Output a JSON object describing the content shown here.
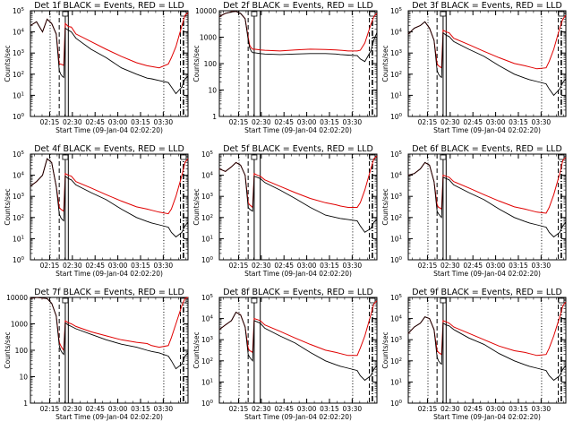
{
  "figure": {
    "xlabel": "Start Time (09-Jan-04 02:02:20)",
    "ylabel": "Counts/sec",
    "x_ticks": [
      "02:15",
      "02:30",
      "02:45",
      "03:00",
      "03:15",
      "03:30"
    ],
    "colors": {
      "events": "#000000",
      "lld": "#e00000"
    }
  },
  "chart_data": [
    {
      "type": "line",
      "title": "Det 1f BLACK = Events, RED = LLD",
      "scale": "log",
      "ylim": [
        1,
        100000
      ],
      "y_ticks": [
        "10^0",
        "10^1",
        "10^2",
        "10^3",
        "10^4",
        "10^5"
      ],
      "x": [
        0,
        4,
        8,
        11,
        14,
        17,
        19,
        20,
        21,
        22,
        23,
        25,
        27,
        30,
        40,
        50,
        60,
        70,
        77,
        80,
        85,
        91,
        93,
        96,
        100,
        102,
        104
      ],
      "series": [
        {
          "name": "LLD",
          "values": [
            20000,
            30000,
            10000,
            40000,
            25000,
            8000,
            300,
            300,
            280,
            260,
            25000,
            18000,
            17000,
            8000,
            3500,
            1500,
            700,
            350,
            250,
            230,
            200,
            300,
            600,
            2000,
            20000,
            60000,
            80000
          ]
        },
        {
          "name": "Events",
          "values": [
            20000,
            30000,
            10000,
            40000,
            25000,
            8000,
            150,
            100,
            80,
            70,
            15000,
            12000,
            10000,
            5000,
            1500,
            600,
            200,
            100,
            65,
            60,
            50,
            40,
            25,
            12,
            25,
            60,
            80
          ]
        }
      ],
      "markers": {
        "dotted": [
          13,
          88
        ],
        "dashed": [
          19,
          99
        ],
        "solid": [
          23,
          25
        ],
        "dashdot": [
          101
        ]
      }
    },
    {
      "type": "line",
      "title": "Det 2f BLACK = Events, RED = LLD",
      "scale": "log",
      "ylim": [
        1,
        10000
      ],
      "y_ticks": [
        "1",
        "10",
        "100",
        "1000",
        "10000"
      ],
      "x": [
        0,
        4,
        8,
        11,
        14,
        17,
        19,
        20,
        21,
        22,
        23,
        25,
        27,
        30,
        40,
        50,
        60,
        70,
        77,
        80,
        85,
        91,
        93,
        96,
        100,
        102,
        104
      ],
      "series": [
        {
          "name": "LLD",
          "values": [
            6000,
            8000,
            9000,
            9500,
            8000,
            5000,
            1000,
            500,
            400,
            350,
            350,
            340,
            330,
            320,
            300,
            330,
            350,
            340,
            330,
            320,
            300,
            300,
            320,
            600,
            3000,
            6000,
            8000
          ]
        },
        {
          "name": "Events",
          "values": [
            6000,
            8000,
            9000,
            9500,
            8000,
            5000,
            800,
            400,
            300,
            260,
            260,
            250,
            240,
            230,
            220,
            230,
            240,
            240,
            230,
            220,
            210,
            200,
            150,
            120,
            300,
            800,
            1500
          ]
        }
      ],
      "markers": {
        "dotted": [
          13,
          88
        ],
        "dashed": [
          19,
          99
        ],
        "solid": [
          23,
          27
        ],
        "dashdot": [
          101
        ]
      }
    },
    {
      "type": "line",
      "title": "Det 3f BLACK = Events, RED = LLD",
      "scale": "log",
      "ylim": [
        1,
        100000
      ],
      "y_ticks": [
        "10^0",
        "10^1",
        "10^2",
        "10^3",
        "10^4",
        "10^5"
      ],
      "x": [
        0,
        4,
        8,
        11,
        14,
        17,
        19,
        20,
        21,
        22,
        23,
        25,
        27,
        30,
        40,
        50,
        60,
        70,
        77,
        80,
        85,
        91,
        93,
        96,
        100,
        102,
        104
      ],
      "series": [
        {
          "name": "LLD",
          "values": [
            8000,
            15000,
            20000,
            30000,
            15000,
            4000,
            300,
            250,
            220,
            200,
            12000,
            10000,
            9000,
            5000,
            2500,
            1200,
            600,
            320,
            250,
            220,
            180,
            200,
            400,
            1500,
            15000,
            40000,
            60000
          ]
        },
        {
          "name": "Events",
          "values": [
            8000,
            15000,
            20000,
            30000,
            15000,
            4000,
            150,
            100,
            80,
            70,
            9000,
            7000,
            6000,
            3500,
            1500,
            700,
            250,
            100,
            65,
            55,
            45,
            35,
            20,
            10,
            20,
            40,
            60
          ]
        }
      ],
      "markers": {
        "dotted": [
          13,
          88
        ],
        "dashed": [
          19,
          99
        ],
        "solid": [
          23,
          25
        ],
        "dashdot": [
          101
        ]
      }
    },
    {
      "type": "line",
      "title": "Det 4f BLACK = Events, RED = LLD",
      "scale": "log",
      "ylim": [
        1,
        100000
      ],
      "y_ticks": [
        "10^0",
        "10^1",
        "10^2",
        "10^3",
        "10^4",
        "10^5"
      ],
      "x": [
        0,
        4,
        8,
        11,
        14,
        17,
        19,
        20,
        21,
        22,
        23,
        25,
        27,
        30,
        40,
        50,
        60,
        70,
        77,
        80,
        85,
        91,
        93,
        96,
        100,
        102,
        104
      ],
      "series": [
        {
          "name": "LLD",
          "values": [
            3000,
            5000,
            10000,
            60000,
            40000,
            3000,
            300,
            250,
            220,
            200,
            12000,
            10000,
            9000,
            5000,
            2500,
            1200,
            600,
            320,
            250,
            220,
            180,
            150,
            250,
            1000,
            10000,
            40000,
            60000
          ]
        },
        {
          "name": "Events",
          "values": [
            3000,
            5000,
            10000,
            60000,
            40000,
            3000,
            150,
            100,
            80,
            70,
            9000,
            7000,
            6000,
            3500,
            1500,
            700,
            250,
            100,
            65,
            55,
            45,
            35,
            20,
            12,
            20,
            40,
            60
          ]
        }
      ],
      "markers": {
        "dotted": [
          13,
          88
        ],
        "dashed": [
          19,
          99
        ],
        "solid": [
          23,
          25
        ],
        "dashdot": [
          101
        ]
      }
    },
    {
      "type": "line",
      "title": "Det 5f BLACK = Events, RED = LLD",
      "scale": "log",
      "ylim": [
        1,
        100000
      ],
      "y_ticks": [
        "10^0",
        "10^1",
        "10^2",
        "10^3",
        "10^4",
        "10^5"
      ],
      "x": [
        0,
        4,
        8,
        11,
        14,
        17,
        19,
        20,
        21,
        22,
        23,
        25,
        27,
        30,
        40,
        50,
        60,
        70,
        77,
        80,
        85,
        91,
        93,
        96,
        100,
        102,
        104
      ],
      "series": [
        {
          "name": "LLD",
          "values": [
            20000,
            15000,
            25000,
            40000,
            30000,
            10000,
            500,
            400,
            350,
            300,
            12000,
            10000,
            9000,
            6000,
            3000,
            1500,
            800,
            500,
            400,
            350,
            300,
            300,
            500,
            2000,
            20000,
            60000,
            80000
          ]
        },
        {
          "name": "Events",
          "values": [
            20000,
            15000,
            25000,
            40000,
            30000,
            10000,
            300,
            250,
            220,
            200,
            9000,
            8000,
            7000,
            4500,
            2000,
            800,
            300,
            130,
            100,
            90,
            80,
            70,
            40,
            20,
            30,
            60,
            80
          ]
        }
      ],
      "markers": {
        "dotted": [
          13,
          88
        ],
        "dashed": [
          19,
          99
        ],
        "solid": [
          23,
          27
        ],
        "dashdot": [
          101
        ]
      }
    },
    {
      "type": "line",
      "title": "Det 6f BLACK = Events, RED = LLD",
      "scale": "log",
      "ylim": [
        1,
        100000
      ],
      "y_ticks": [
        "10^0",
        "10^1",
        "10^2",
        "10^3",
        "10^4",
        "10^5"
      ],
      "x": [
        0,
        4,
        8,
        11,
        14,
        17,
        19,
        20,
        21,
        22,
        23,
        25,
        27,
        30,
        40,
        50,
        60,
        70,
        77,
        80,
        85,
        91,
        93,
        96,
        100,
        102,
        104
      ],
      "series": [
        {
          "name": "LLD",
          "values": [
            10000,
            12000,
            20000,
            40000,
            30000,
            5000,
            400,
            300,
            280,
            250,
            10000,
            9000,
            8000,
            5000,
            2500,
            1200,
            600,
            320,
            250,
            220,
            180,
            160,
            300,
            1200,
            12000,
            50000,
            70000
          ]
        },
        {
          "name": "Events",
          "values": [
            10000,
            12000,
            20000,
            40000,
            30000,
            5000,
            200,
            150,
            120,
            100,
            8000,
            7000,
            6000,
            3500,
            1500,
            700,
            250,
            100,
            65,
            55,
            45,
            35,
            20,
            12,
            20,
            40,
            60
          ]
        }
      ],
      "markers": {
        "dotted": [
          13,
          88
        ],
        "dashed": [
          19,
          99
        ],
        "solid": [
          23,
          25
        ],
        "dashdot": [
          101
        ]
      }
    },
    {
      "type": "line",
      "title": "Det 7f BLACK = Events, RED = LLD",
      "scale": "log",
      "ylim": [
        1,
        10000
      ],
      "y_ticks": [
        "1",
        "10",
        "100",
        "1000",
        "10000"
      ],
      "x": [
        0,
        4,
        8,
        11,
        14,
        17,
        19,
        20,
        21,
        22,
        23,
        25,
        27,
        30,
        40,
        50,
        60,
        70,
        77,
        80,
        85,
        91,
        93,
        96,
        100,
        102,
        104
      ],
      "series": [
        {
          "name": "LLD",
          "values": [
            9000,
            10000,
            9500,
            9000,
            6000,
            2000,
            200,
            150,
            120,
            100,
            1300,
            1100,
            1000,
            800,
            500,
            350,
            250,
            200,
            180,
            150,
            130,
            150,
            300,
            1000,
            5000,
            9000,
            10000
          ]
        },
        {
          "name": "Events",
          "values": [
            9000,
            10000,
            9500,
            9000,
            6000,
            2000,
            150,
            100,
            80,
            70,
            1100,
            900,
            800,
            650,
            400,
            250,
            170,
            130,
            100,
            90,
            80,
            60,
            40,
            20,
            30,
            60,
            80
          ]
        }
      ],
      "markers": {
        "dotted": [
          13,
          88
        ],
        "dashed": [
          19,
          99
        ],
        "solid": [
          23,
          25
        ],
        "dashdot": [
          101
        ]
      }
    },
    {
      "type": "line",
      "title": "Det 8f BLACK = Events, RED = LLD",
      "scale": "log",
      "ylim": [
        1,
        100000
      ],
      "y_ticks": [
        "10^0",
        "10^1",
        "10^2",
        "10^3",
        "10^4",
        "10^5"
      ],
      "x": [
        0,
        4,
        8,
        11,
        14,
        17,
        19,
        20,
        21,
        22,
        23,
        25,
        27,
        30,
        40,
        50,
        60,
        70,
        77,
        80,
        85,
        91,
        93,
        96,
        100,
        102,
        104
      ],
      "series": [
        {
          "name": "LLD",
          "values": [
            3000,
            5000,
            8000,
            20000,
            15000,
            4000,
            400,
            300,
            280,
            250,
            10000,
            9000,
            8000,
            5000,
            2500,
            1200,
            600,
            320,
            250,
            220,
            180,
            180,
            400,
            1500,
            15000,
            50000,
            70000
          ]
        },
        {
          "name": "Events",
          "values": [
            3000,
            5000,
            8000,
            20000,
            15000,
            4000,
            200,
            150,
            120,
            100,
            8000,
            7000,
            6000,
            3500,
            1500,
            700,
            250,
            100,
            65,
            55,
            45,
            35,
            20,
            12,
            20,
            40,
            60
          ]
        }
      ],
      "markers": {
        "dotted": [
          13,
          88
        ],
        "dashed": [
          19,
          99
        ],
        "solid": [
          23,
          27
        ],
        "dashdot": [
          101
        ]
      }
    },
    {
      "type": "line",
      "title": "Det 9f BLACK = Events, RED = LLD",
      "scale": "log",
      "ylim": [
        1,
        100000
      ],
      "y_ticks": [
        "10^0",
        "10^1",
        "10^2",
        "10^3",
        "10^4",
        "10^5"
      ],
      "x": [
        0,
        4,
        8,
        11,
        14,
        17,
        19,
        20,
        21,
        22,
        23,
        25,
        27,
        30,
        40,
        50,
        60,
        70,
        77,
        80,
        85,
        91,
        93,
        96,
        100,
        102,
        104
      ],
      "series": [
        {
          "name": "LLD",
          "values": [
            2000,
            4000,
            6000,
            12000,
            10000,
            3000,
            300,
            250,
            220,
            200,
            8000,
            7000,
            6000,
            4000,
            2000,
            1000,
            500,
            300,
            250,
            220,
            180,
            200,
            400,
            1500,
            12000,
            40000,
            60000
          ]
        },
        {
          "name": "Events",
          "values": [
            2000,
            4000,
            6000,
            12000,
            10000,
            3000,
            150,
            100,
            80,
            70,
            6000,
            5000,
            4500,
            3000,
            1200,
            600,
            220,
            100,
            65,
            55,
            45,
            35,
            20,
            12,
            20,
            40,
            60
          ]
        }
      ],
      "markers": {
        "dotted": [
          13,
          88
        ],
        "dashed": [
          19,
          99
        ],
        "solid": [
          23,
          25
        ],
        "dashdot": [
          101
        ]
      }
    }
  ]
}
